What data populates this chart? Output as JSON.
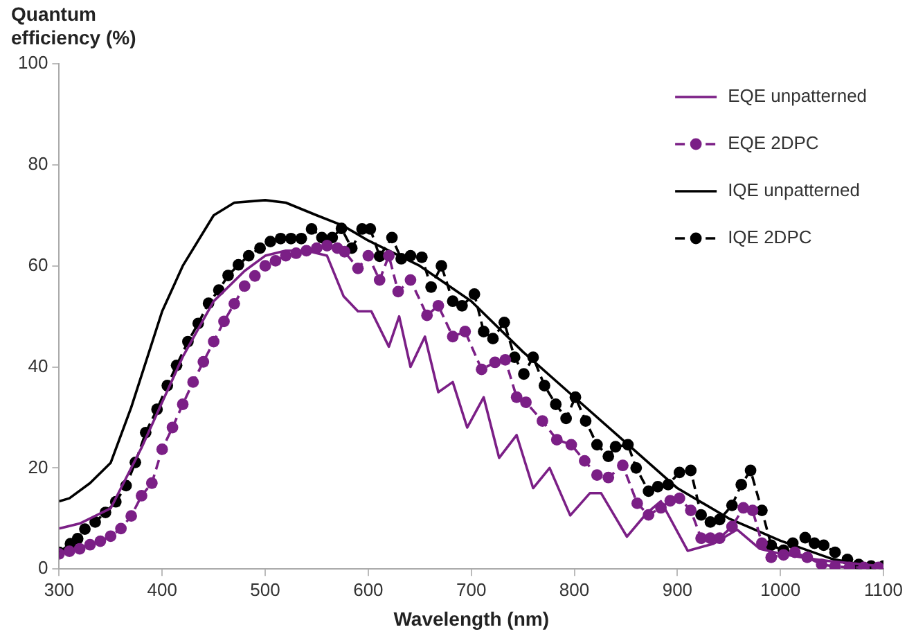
{
  "chart_data": {
    "type": "line",
    "xlabel": "Wavelength (nm)",
    "ylabel": "Quantum efficiency (%)",
    "xlim": [
      300,
      1100
    ],
    "xticks": [
      300,
      400,
      500,
      600,
      700,
      800,
      900,
      1000,
      1100
    ],
    "ylim": [
      0,
      100
    ],
    "yticks": [
      0,
      20,
      40,
      60,
      80,
      100
    ],
    "grid": false,
    "legend": "top right",
    "series": [
      {
        "name": "EQE unpatterned",
        "color": "#7b1f86",
        "marker": "none",
        "line_style": "solid",
        "x": [
          300,
          320,
          350,
          380,
          400,
          420,
          450,
          480,
          500,
          520,
          540,
          560,
          576,
          590,
          603,
          620,
          630,
          641,
          655,
          668,
          682,
          696,
          712,
          727,
          744,
          760,
          776,
          796,
          815,
          826,
          851,
          870,
          884,
          910,
          935,
          958,
          980,
          1000,
          1030,
          1050,
          1075,
          1100
        ],
        "values": [
          8,
          9,
          12,
          24,
          33,
          42,
          53,
          59,
          62,
          63,
          63,
          62,
          54,
          51,
          51,
          44,
          50,
          40,
          46,
          35,
          37,
          28,
          34,
          22,
          26.5,
          16,
          20,
          10.6,
          15,
          15,
          6.4,
          11,
          13.4,
          3.6,
          5,
          7.8,
          4,
          3,
          2,
          1.5,
          1,
          0.5
        ]
      },
      {
        "name": "EQE 2DPC",
        "color": "#7b1f86",
        "marker": "circle",
        "line_style": "dashed",
        "x": [
          300,
          310,
          320,
          330,
          340,
          350,
          360,
          370,
          380,
          390,
          400,
          410,
          420,
          430,
          440,
          450,
          460,
          470,
          480,
          490,
          500,
          510,
          520,
          530,
          540,
          550,
          560,
          570,
          577,
          590,
          600,
          611,
          620,
          629,
          641,
          657,
          668,
          682,
          694,
          710,
          723,
          733,
          744,
          753,
          769,
          783,
          797,
          810,
          822,
          833,
          847,
          861,
          872,
          884,
          893,
          902,
          913,
          923,
          932,
          941,
          953,
          964,
          973,
          982,
          991,
          1003,
          1014,
          1026,
          1040,
          1053,
          1067,
          1081,
          1095
        ],
        "values": [
          3,
          3.5,
          4,
          4.8,
          5.5,
          6.5,
          8,
          10.5,
          14.5,
          17,
          23.7,
          28,
          32.6,
          37,
          41,
          45,
          49,
          52.5,
          56,
          58,
          60,
          61,
          62,
          62.5,
          63,
          63.5,
          64,
          63.5,
          62.8,
          59.5,
          62,
          57.2,
          62,
          54.9,
          57.2,
          50.2,
          52.1,
          46,
          47,
          39.5,
          40.9,
          41.4,
          34,
          33,
          29.3,
          25.6,
          24.6,
          21.4,
          18.6,
          18.1,
          20.5,
          13,
          10.7,
          12.1,
          13.5,
          14,
          11.6,
          6.1,
          6.1,
          6.1,
          8.4,
          12.1,
          11.6,
          5.1,
          2.3,
          2.8,
          3.3,
          2.3,
          0.9,
          0.5,
          0.3,
          0.3,
          0.3
        ]
      },
      {
        "name": "IQE unpatterned",
        "color": "#000000",
        "marker": "none",
        "line_style": "solid",
        "x": [
          300,
          310,
          330,
          350,
          370,
          400,
          420,
          450,
          470,
          500,
          520,
          550,
          575,
          600,
          650,
          700,
          750,
          800,
          850,
          900,
          950,
          1000,
          1050,
          1075,
          1100
        ],
        "values": [
          13.4,
          14,
          17,
          21,
          32,
          51,
          60,
          70,
          72.5,
          73,
          72.5,
          70,
          68,
          65,
          60,
          53,
          43,
          34,
          25,
          16,
          10,
          5.6,
          2,
          1,
          0.5
        ]
      },
      {
        "name": "IQE 2DPC",
        "color": "#000000",
        "marker": "circle",
        "line_style": "dashed",
        "x": [
          300,
          311,
          318,
          325,
          335,
          345,
          355,
          365,
          374,
          384,
          395,
          405,
          414,
          425,
          435,
          445,
          455,
          464,
          474,
          484,
          495,
          505,
          515,
          525,
          535,
          545,
          555,
          565,
          574,
          584,
          594,
          602,
          611,
          623,
          632,
          641,
          652,
          661,
          671,
          682,
          691,
          703,
          712,
          721,
          732,
          742,
          751,
          760,
          771,
          782,
          792,
          801,
          811,
          822,
          833,
          840,
          852,
          860,
          872,
          881,
          891,
          902,
          913,
          923,
          932,
          941,
          953,
          962,
          971,
          982,
          991,
          1003,
          1012,
          1024,
          1033,
          1042,
          1053,
          1065,
          1076,
          1088,
          1100
        ],
        "values": [
          3.3,
          5,
          6,
          7.9,
          9.3,
          11.2,
          13.3,
          16.5,
          21.1,
          27,
          31.6,
          36.3,
          40.3,
          45,
          48.6,
          52.6,
          55.2,
          58.1,
          60.2,
          62,
          63.5,
          64.8,
          65.4,
          65.4,
          65.4,
          67.3,
          65.6,
          65.6,
          67.4,
          63.5,
          67.3,
          67.3,
          61.9,
          65.6,
          61.4,
          62,
          61.7,
          55.8,
          60,
          53,
          52.1,
          54.4,
          47,
          45.6,
          48.8,
          41.9,
          38.6,
          41.9,
          36.3,
          32.6,
          29.8,
          34,
          29.3,
          24.6,
          22.3,
          24.2,
          24.6,
          20,
          15.4,
          16.3,
          16.7,
          19.1,
          19.5,
          10.7,
          9.3,
          9.8,
          12.6,
          16.7,
          19.5,
          11.6,
          4.7,
          3.7,
          5.1,
          6.2,
          5.1,
          4.7,
          3.3,
          1.9,
          0.9,
          0.6,
          0.6
        ]
      }
    ]
  }
}
